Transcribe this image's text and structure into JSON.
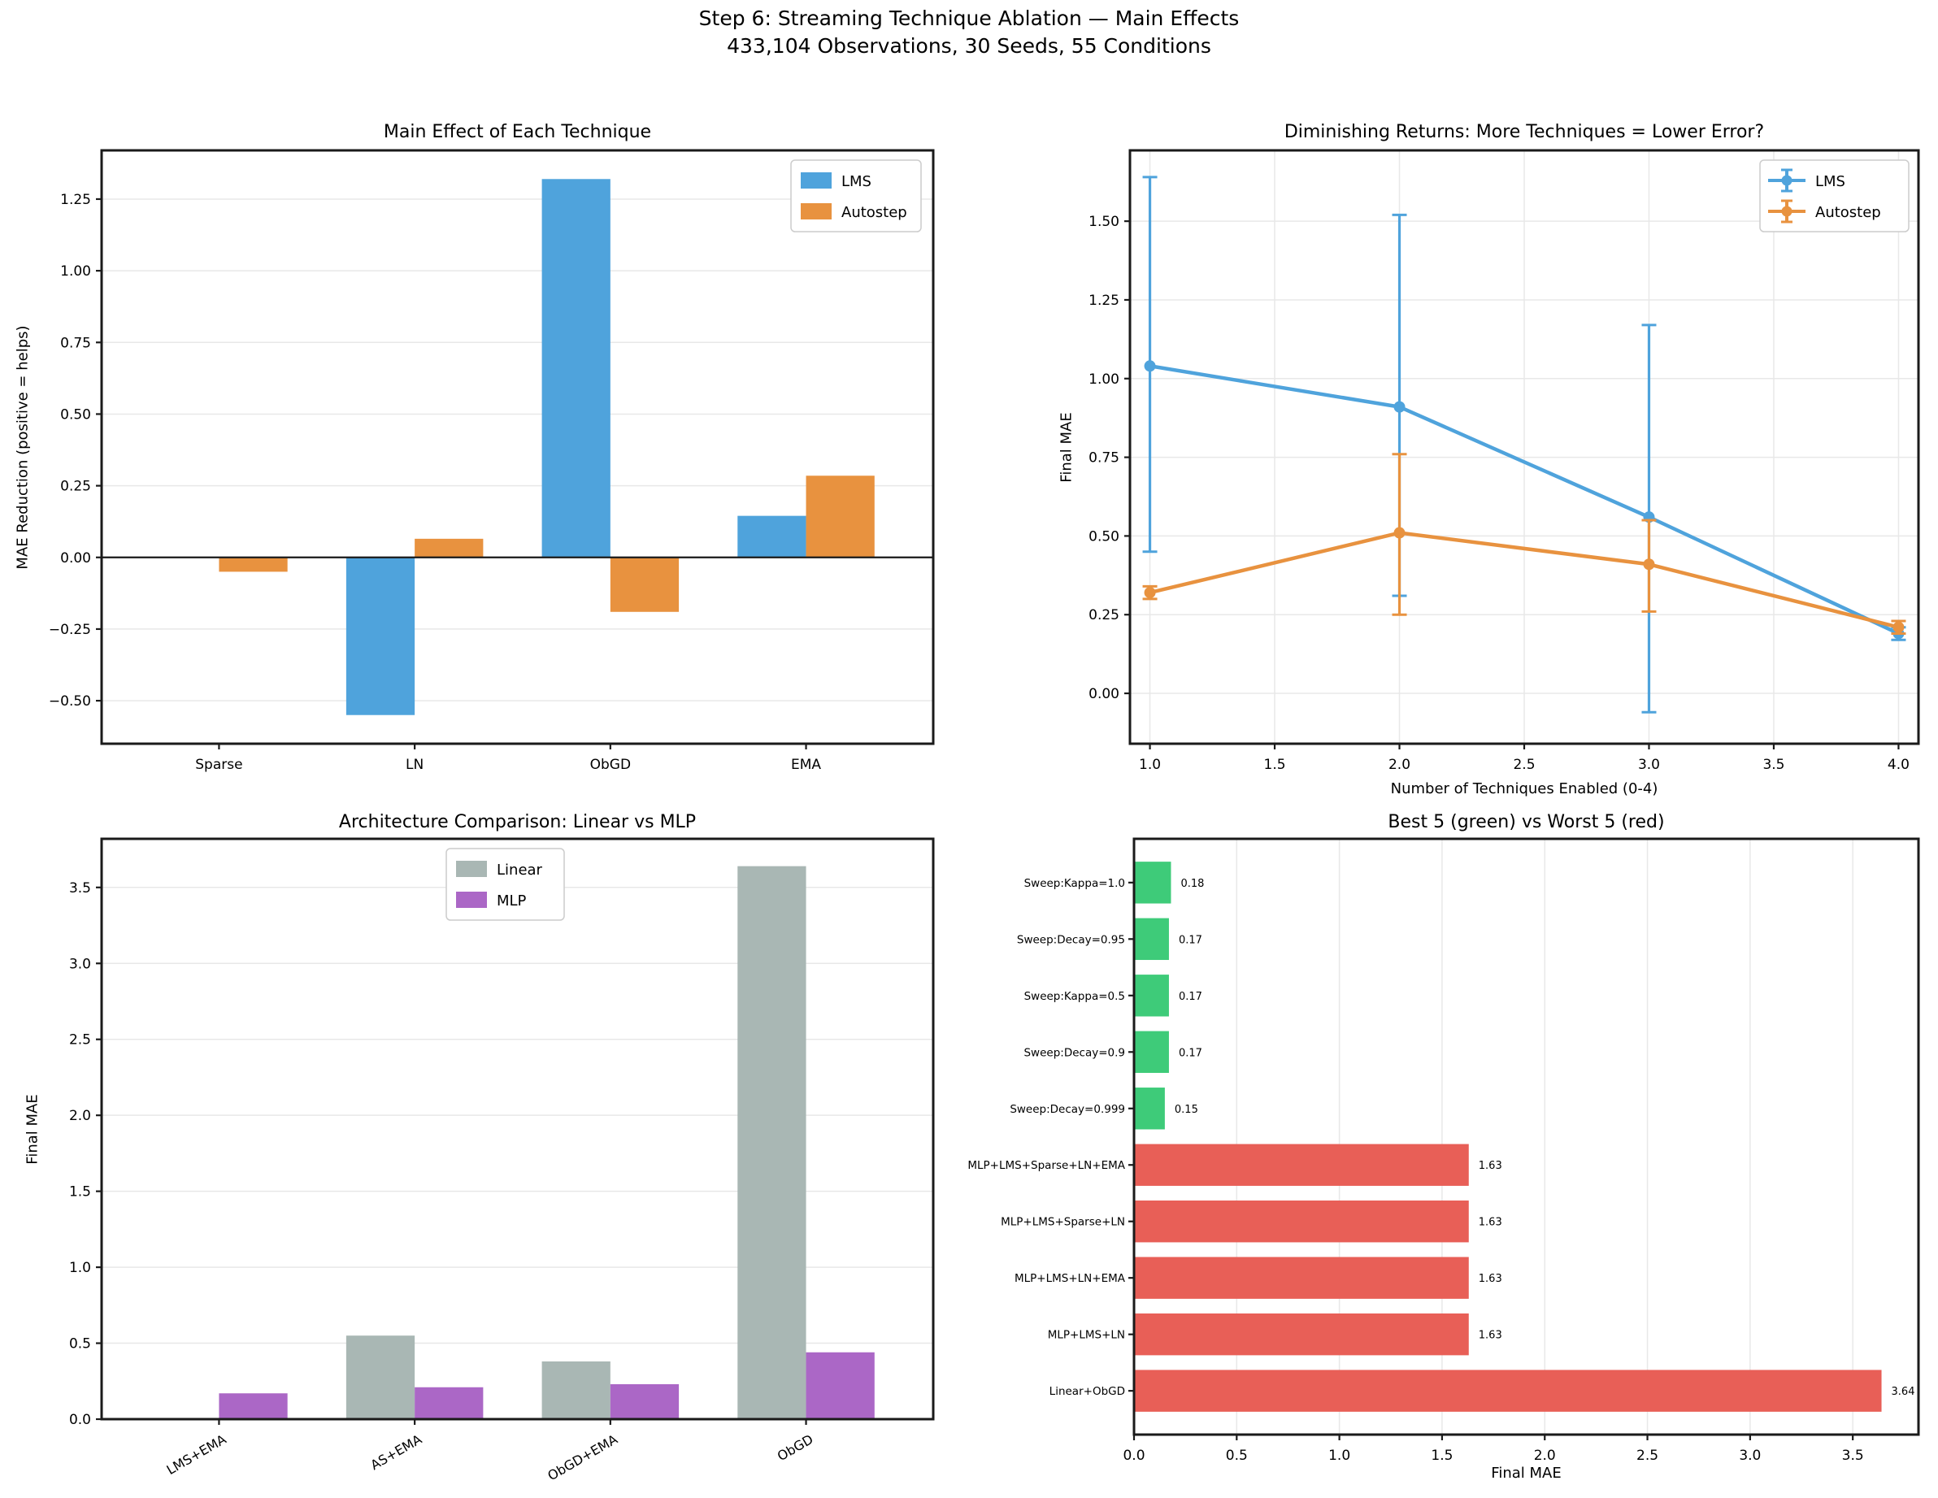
{
  "suptitle": {
    "line1": "Step 6: Streaming Technique Ablation — Main Effects",
    "line2": "433,104 Observations, 30 Seeds, 55 Conditions"
  },
  "colors": {
    "blue": "#4fa3dc",
    "orange": "#e8923f",
    "gray": "#a9b7b4",
    "purple": "#ab67c6",
    "green": "#3ecb79",
    "red": "#e85f57",
    "grid": "#e8e8e8",
    "spine": "#1a1a1a",
    "legend_border": "#cccccc",
    "text": "#000000"
  },
  "chart_data": [
    {
      "type": "bar",
      "title": "Main Effect of Each Technique",
      "ylabel": "MAE Reduction (positive = helps)",
      "categories": [
        "Sparse",
        "LN",
        "ObGD",
        "EMA"
      ],
      "series": [
        {
          "name": "LMS",
          "color": "blue",
          "values": [
            0.0,
            -0.55,
            1.32,
            0.145
          ]
        },
        {
          "name": "Autostep",
          "color": "orange",
          "values": [
            -0.05,
            0.065,
            -0.19,
            0.285
          ]
        }
      ],
      "xlim": [
        -0.6,
        3.65
      ],
      "ylim": [
        -0.65,
        1.42
      ],
      "yticks": [
        [
          -0.5,
          "−0.50"
        ],
        [
          -0.25,
          "−0.25"
        ],
        [
          0,
          "0.00"
        ],
        [
          0.25,
          "0.25"
        ],
        [
          0.5,
          "0.50"
        ],
        [
          0.75,
          "0.75"
        ],
        [
          1,
          "1.00"
        ],
        [
          1.25,
          "1.25"
        ]
      ],
      "grid": "horizontal",
      "zero_line": true,
      "legend_position": "upper right"
    },
    {
      "type": "line",
      "title": "Diminishing Returns: More Techniques = Lower Error?",
      "xlabel": "Number of Techniques Enabled (0-4)",
      "ylabel": "Final MAE",
      "x": [
        1,
        2,
        3,
        4
      ],
      "series": [
        {
          "name": "LMS",
          "color": "blue",
          "values": [
            1.04,
            0.91,
            0.56,
            0.19
          ],
          "err_low": [
            0.45,
            0.31,
            -0.06,
            0.17
          ],
          "err_high": [
            1.64,
            1.52,
            1.17,
            0.21
          ]
        },
        {
          "name": "Autostep",
          "color": "orange",
          "values": [
            0.32,
            0.51,
            0.41,
            0.21
          ],
          "err_low": [
            0.3,
            0.25,
            0.26,
            0.19
          ],
          "err_high": [
            0.34,
            0.76,
            0.55,
            0.23
          ]
        }
      ],
      "xlim": [
        0.92,
        4.08
      ],
      "ylim": [
        -0.16,
        1.725
      ],
      "xticks": [
        [
          1,
          "1.0"
        ],
        [
          1.5,
          "1.5"
        ],
        [
          2,
          "2.0"
        ],
        [
          2.5,
          "2.5"
        ],
        [
          3,
          "3.0"
        ],
        [
          3.5,
          "3.5"
        ],
        [
          4,
          "4.0"
        ]
      ],
      "yticks": [
        [
          0,
          "0.00"
        ],
        [
          0.25,
          "0.25"
        ],
        [
          0.5,
          "0.50"
        ],
        [
          0.75,
          "0.75"
        ],
        [
          1,
          "1.00"
        ],
        [
          1.25,
          "1.25"
        ],
        [
          1.5,
          "1.50"
        ]
      ],
      "grid": "both",
      "legend_position": "upper right"
    },
    {
      "type": "bar",
      "title": "Architecture Comparison: Linear vs MLP",
      "ylabel": "Final MAE",
      "categories": [
        "LMS+EMA",
        "AS+EMA",
        "ObGD+EMA",
        "ObGD"
      ],
      "series": [
        {
          "name": "Linear",
          "color": "gray",
          "values": [
            0.0,
            0.55,
            0.38,
            3.64
          ]
        },
        {
          "name": "MLP",
          "color": "purple",
          "values": [
            0.17,
            0.21,
            0.23,
            0.44
          ]
        }
      ],
      "xlim": [
        -0.6,
        3.65
      ],
      "ylim": [
        0,
        3.82
      ],
      "yticks": [
        [
          0,
          "0.0"
        ],
        [
          0.5,
          "0.5"
        ],
        [
          1,
          "1.0"
        ],
        [
          1.5,
          "1.5"
        ],
        [
          2,
          "2.0"
        ],
        [
          2.5,
          "2.5"
        ],
        [
          3,
          "3.0"
        ],
        [
          3.5,
          "3.5"
        ]
      ],
      "xtick_rotation": 30,
      "grid": "horizontal",
      "legend_position": "upper center-left"
    },
    {
      "type": "barh",
      "title": "Best 5 (green) vs Worst 5 (red)",
      "xlabel": "Final MAE",
      "categories": [
        "Sweep:Kappa=1.0",
        "Sweep:Decay=0.95",
        "Sweep:Kappa=0.5",
        "Sweep:Decay=0.9",
        "Sweep:Decay=0.999",
        "MLP+LMS+Sparse+LN+EMA",
        "MLP+LMS+Sparse+LN",
        "MLP+LMS+LN+EMA",
        "MLP+LMS+LN",
        "Linear+ObGD"
      ],
      "values": [
        0.18,
        0.17,
        0.17,
        0.17,
        0.15,
        1.63,
        1.63,
        1.63,
        1.63,
        3.64
      ],
      "value_labels": [
        "0.18",
        "0.17",
        "0.17",
        "0.17",
        "0.15",
        "1.63",
        "1.63",
        "1.63",
        "1.63",
        "3.64"
      ],
      "bar_color_keys": [
        "green",
        "green",
        "green",
        "green",
        "green",
        "red",
        "red",
        "red",
        "red",
        "red"
      ],
      "xlim": [
        0,
        3.82
      ],
      "xticks": [
        [
          0,
          "0.0"
        ],
        [
          0.5,
          "0.5"
        ],
        [
          1,
          "1.0"
        ],
        [
          1.5,
          "1.5"
        ],
        [
          2,
          "2.0"
        ],
        [
          2.5,
          "2.5"
        ],
        [
          3,
          "3.0"
        ],
        [
          3.5,
          "3.5"
        ]
      ],
      "grid": "vertical"
    }
  ]
}
